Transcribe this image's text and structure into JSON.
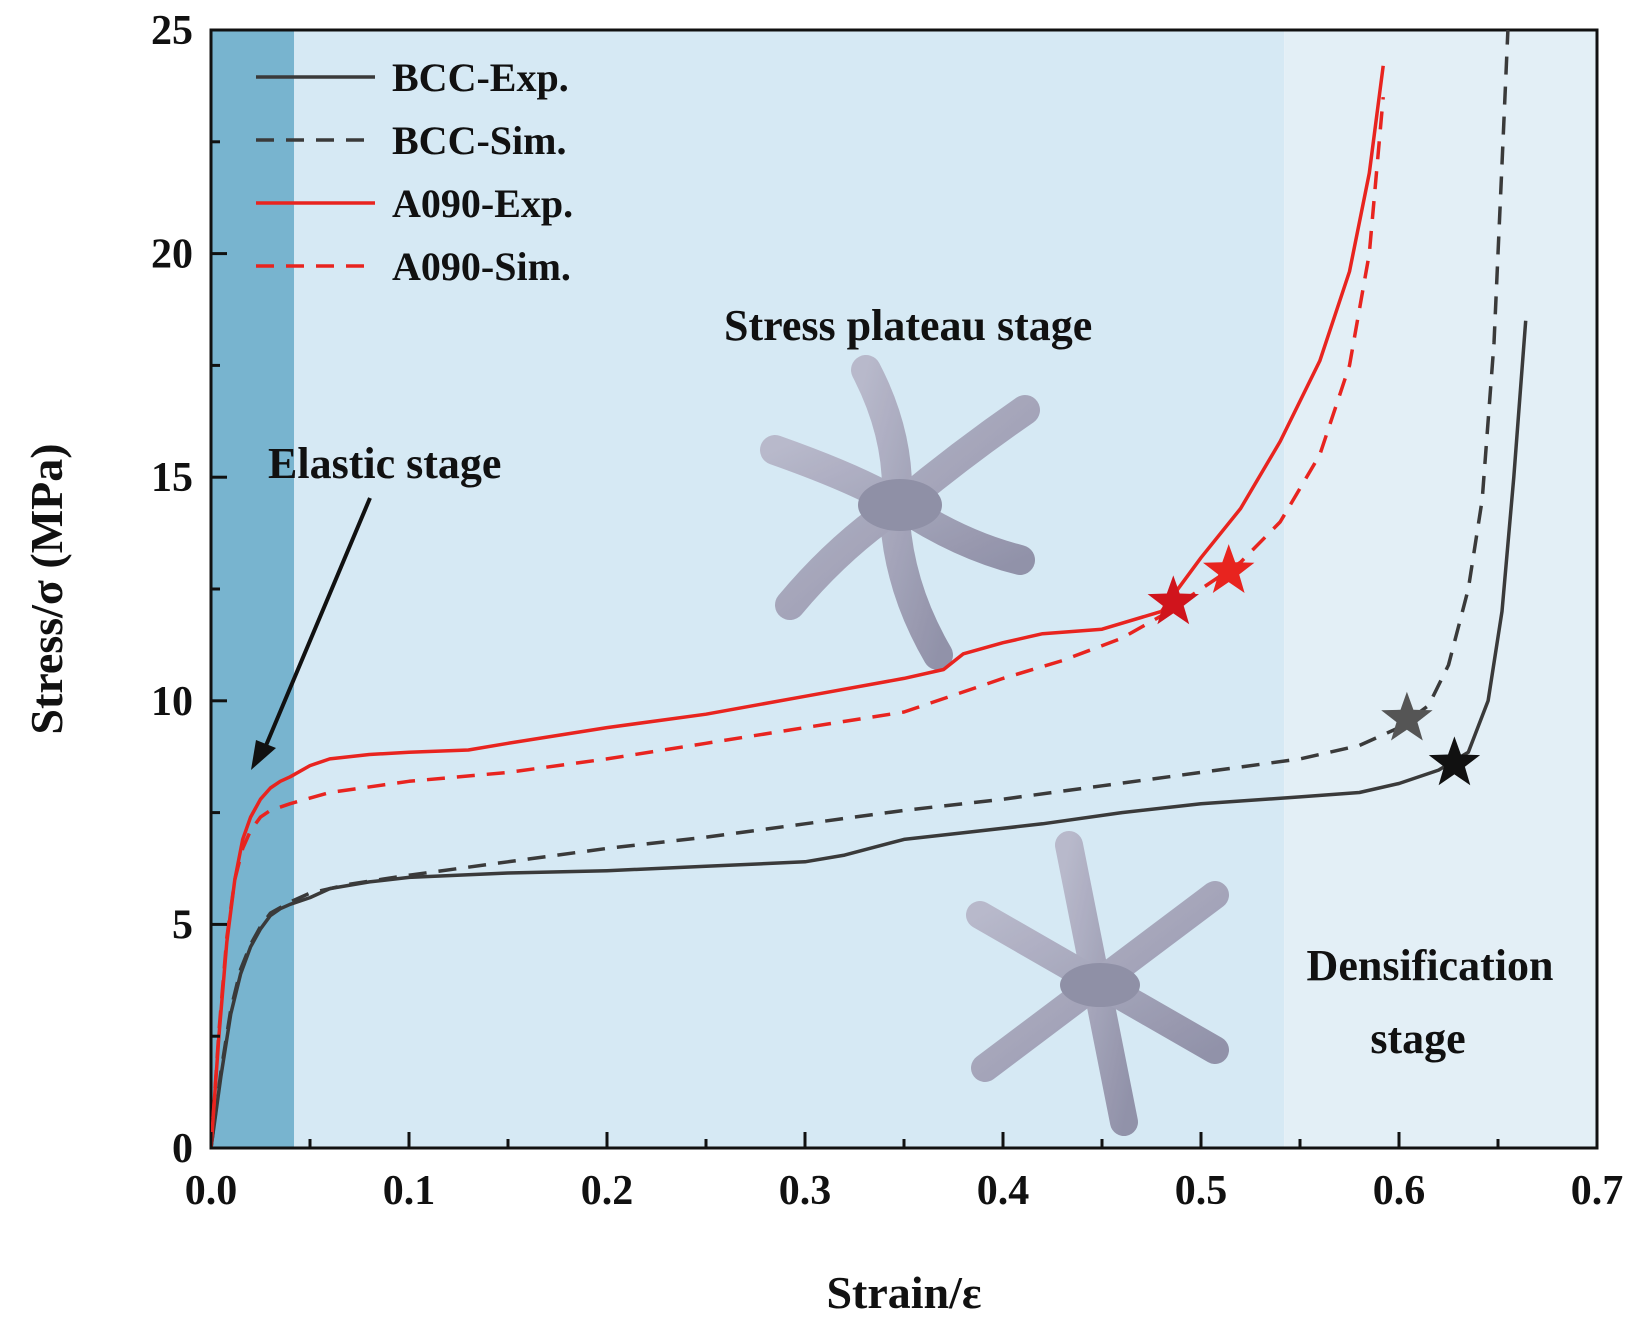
{
  "chart_data": {
    "type": "line",
    "title": "",
    "xlabel": "Strain/ε",
    "ylabel": "Stress/σ (MPa)",
    "xlim": [
      0.0,
      0.7
    ],
    "ylim": [
      0,
      25
    ],
    "x_ticks": [
      0.0,
      0.1,
      0.2,
      0.3,
      0.4,
      0.5,
      0.6,
      0.7
    ],
    "x_tick_labels": [
      "0.0",
      "0.1",
      "0.2",
      "0.3",
      "0.4",
      "0.5",
      "0.6",
      "0.7"
    ],
    "y_ticks": [
      0,
      5,
      10,
      15,
      20,
      25
    ],
    "y_tick_labels": [
      "0",
      "5",
      "10",
      "15",
      "20",
      "25"
    ],
    "legend_position": "top-left",
    "stages": [
      {
        "name": "elastic",
        "x_range": [
          0.0,
          0.042
        ],
        "color": "#78b4cf"
      },
      {
        "name": "plateau",
        "x_range": [
          0.042,
          0.542
        ],
        "color": "#d6e9f4"
      },
      {
        "name": "densification",
        "x_range": [
          0.542,
          0.7
        ],
        "color": "#e3eff6"
      }
    ],
    "annotations": {
      "elastic_label": "Elastic stage",
      "plateau_label": "Stress plateau stage",
      "densification_line1": "Densification",
      "densification_line2": "stage",
      "arrow_target": {
        "x": 0.019,
        "y": 8.4
      }
    },
    "series": [
      {
        "name": "BCC-Exp.",
        "color": "#3a3a3a",
        "dash": "solid",
        "points": [
          [
            0,
            0
          ],
          [
            0.005,
            1.6
          ],
          [
            0.01,
            3.0
          ],
          [
            0.015,
            3.9
          ],
          [
            0.02,
            4.5
          ],
          [
            0.025,
            4.9
          ],
          [
            0.03,
            5.2
          ],
          [
            0.035,
            5.35
          ],
          [
            0.04,
            5.45
          ],
          [
            0.05,
            5.6
          ],
          [
            0.06,
            5.8
          ],
          [
            0.08,
            5.95
          ],
          [
            0.1,
            6.05
          ],
          [
            0.15,
            6.15
          ],
          [
            0.2,
            6.2
          ],
          [
            0.25,
            6.3
          ],
          [
            0.3,
            6.4
          ],
          [
            0.32,
            6.55
          ],
          [
            0.35,
            6.9
          ],
          [
            0.38,
            7.05
          ],
          [
            0.42,
            7.25
          ],
          [
            0.46,
            7.5
          ],
          [
            0.5,
            7.7
          ],
          [
            0.55,
            7.85
          ],
          [
            0.58,
            7.95
          ],
          [
            0.6,
            8.15
          ],
          [
            0.62,
            8.45
          ],
          [
            0.635,
            8.85
          ],
          [
            0.645,
            10.0
          ],
          [
            0.652,
            12.0
          ],
          [
            0.658,
            15.0
          ],
          [
            0.664,
            18.5
          ]
        ]
      },
      {
        "name": "BCC-Sim.",
        "color": "#3a3a3a",
        "dash": "dashed",
        "points": [
          [
            0,
            0
          ],
          [
            0.005,
            1.7
          ],
          [
            0.01,
            3.1
          ],
          [
            0.015,
            4.0
          ],
          [
            0.02,
            4.55
          ],
          [
            0.025,
            4.95
          ],
          [
            0.03,
            5.25
          ],
          [
            0.04,
            5.5
          ],
          [
            0.05,
            5.7
          ],
          [
            0.07,
            5.9
          ],
          [
            0.1,
            6.1
          ],
          [
            0.15,
            6.4
          ],
          [
            0.2,
            6.7
          ],
          [
            0.25,
            6.95
          ],
          [
            0.3,
            7.25
          ],
          [
            0.35,
            7.55
          ],
          [
            0.4,
            7.8
          ],
          [
            0.45,
            8.1
          ],
          [
            0.5,
            8.4
          ],
          [
            0.55,
            8.7
          ],
          [
            0.58,
            9.0
          ],
          [
            0.6,
            9.4
          ],
          [
            0.615,
            9.9
          ],
          [
            0.625,
            10.8
          ],
          [
            0.635,
            12.5
          ],
          [
            0.642,
            14.5
          ],
          [
            0.648,
            18.0
          ],
          [
            0.652,
            22.0
          ],
          [
            0.655,
            25.0
          ]
        ]
      },
      {
        "name": "A090-Exp.",
        "color": "#e8241f",
        "dash": "solid",
        "points": [
          [
            0,
            0
          ],
          [
            0.004,
            2.5
          ],
          [
            0.008,
            4.6
          ],
          [
            0.012,
            6.0
          ],
          [
            0.016,
            6.9
          ],
          [
            0.02,
            7.4
          ],
          [
            0.025,
            7.8
          ],
          [
            0.03,
            8.05
          ],
          [
            0.035,
            8.2
          ],
          [
            0.04,
            8.3
          ],
          [
            0.05,
            8.55
          ],
          [
            0.06,
            8.7
          ],
          [
            0.08,
            8.8
          ],
          [
            0.1,
            8.85
          ],
          [
            0.13,
            8.9
          ],
          [
            0.15,
            9.05
          ],
          [
            0.2,
            9.4
          ],
          [
            0.25,
            9.7
          ],
          [
            0.3,
            10.1
          ],
          [
            0.35,
            10.5
          ],
          [
            0.37,
            10.7
          ],
          [
            0.38,
            11.05
          ],
          [
            0.4,
            11.3
          ],
          [
            0.42,
            11.5
          ],
          [
            0.45,
            11.6
          ],
          [
            0.48,
            12.0
          ],
          [
            0.5,
            13.2
          ],
          [
            0.52,
            14.3
          ],
          [
            0.54,
            15.8
          ],
          [
            0.56,
            17.6
          ],
          [
            0.575,
            19.6
          ],
          [
            0.585,
            21.8
          ],
          [
            0.592,
            24.2
          ]
        ]
      },
      {
        "name": "A090-Sim.",
        "color": "#e8241f",
        "dash": "dashed",
        "points": [
          [
            0,
            0
          ],
          [
            0.004,
            2.6
          ],
          [
            0.008,
            4.7
          ],
          [
            0.012,
            6.0
          ],
          [
            0.016,
            6.7
          ],
          [
            0.02,
            7.1
          ],
          [
            0.025,
            7.4
          ],
          [
            0.03,
            7.55
          ],
          [
            0.04,
            7.7
          ],
          [
            0.06,
            7.95
          ],
          [
            0.1,
            8.2
          ],
          [
            0.15,
            8.4
          ],
          [
            0.2,
            8.7
          ],
          [
            0.25,
            9.05
          ],
          [
            0.3,
            9.4
          ],
          [
            0.35,
            9.75
          ],
          [
            0.38,
            10.2
          ],
          [
            0.4,
            10.5
          ],
          [
            0.43,
            10.9
          ],
          [
            0.46,
            11.4
          ],
          [
            0.48,
            11.9
          ],
          [
            0.5,
            12.5
          ],
          [
            0.52,
            13.1
          ],
          [
            0.54,
            14.0
          ],
          [
            0.56,
            15.5
          ],
          [
            0.575,
            17.5
          ],
          [
            0.585,
            20.0
          ],
          [
            0.592,
            23.5
          ]
        ]
      }
    ],
    "markers": [
      {
        "series": "A090-Exp.",
        "x": 0.486,
        "y": 12.2,
        "color": "#d0141c",
        "shape": "star"
      },
      {
        "series": "A090-Sim.",
        "x": 0.514,
        "y": 12.9,
        "color": "#e8241f",
        "shape": "star"
      },
      {
        "series": "BCC-Sim.",
        "x": 0.604,
        "y": 9.6,
        "color": "#555555",
        "shape": "star"
      },
      {
        "series": "BCC-Exp.",
        "x": 0.628,
        "y": 8.6,
        "color": "#111111",
        "shape": "star"
      }
    ],
    "insets": [
      {
        "name": "A090-unit-cell",
        "x": 0.345,
        "y": 15.0
      },
      {
        "name": "BCC-unit-cell",
        "x": 0.45,
        "y": 4.0
      }
    ]
  }
}
